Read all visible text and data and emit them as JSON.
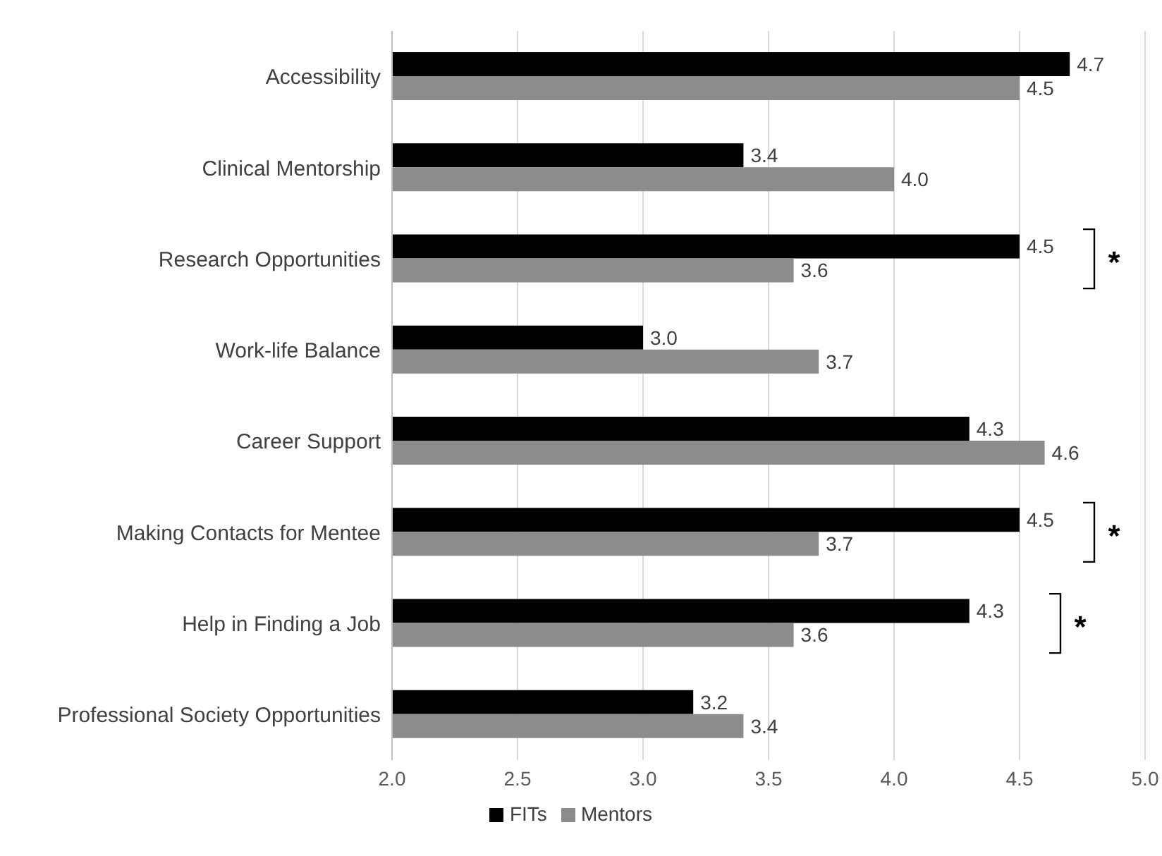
{
  "chart_data": {
    "type": "bar",
    "orientation": "horizontal",
    "categories": [
      "Accessibility",
      "Clinical Mentorship",
      "Research Opportunities",
      "Work-life Balance",
      "Career Support",
      "Making Contacts for Mentee",
      "Help in Finding a Job",
      "Professional Society Opportunities"
    ],
    "series": [
      {
        "name": "FITs",
        "color": "#000000",
        "values": [
          4.7,
          3.4,
          4.5,
          3.0,
          4.3,
          4.5,
          4.3,
          3.2
        ],
        "value_labels": [
          "4.7",
          "3.4",
          "4.5",
          "3.0",
          "4.3",
          "4.5",
          "4.3",
          "3.2"
        ]
      },
      {
        "name": "Mentors",
        "color": "#8c8c8c",
        "values": [
          4.5,
          4.0,
          3.6,
          3.7,
          4.6,
          3.7,
          3.6,
          3.4
        ],
        "value_labels": [
          "4.5",
          "4.0",
          "3.6",
          "3.7",
          "4.6",
          "3.7",
          "3.6",
          "3.4"
        ]
      }
    ],
    "xlim": [
      2,
      5
    ],
    "xticks": [
      {
        "value": 2,
        "label": "2.0"
      },
      {
        "value": 2.5,
        "label": "2.5"
      },
      {
        "value": 3,
        "label": "3.0"
      },
      {
        "value": 3.5,
        "label": "3.5"
      },
      {
        "value": 4,
        "label": "4.0"
      },
      {
        "value": 4.5,
        "label": "4.5"
      },
      {
        "value": 5,
        "label": "5.0"
      }
    ],
    "grid": "x",
    "legend": "bottom",
    "annotations": [
      "*",
      "*",
      "*"
    ]
  }
}
